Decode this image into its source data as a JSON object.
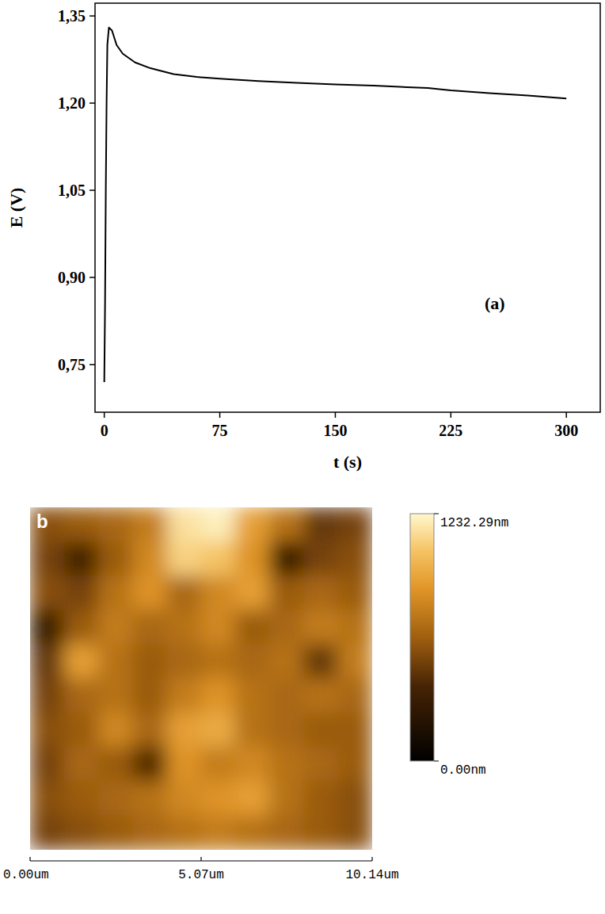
{
  "chart_data": [
    {
      "type": "line",
      "x_label": "t (s)",
      "y_label": "E (V)",
      "annotation": "(a)",
      "x": [
        0,
        0.5,
        1,
        1.5,
        2,
        3,
        5,
        8,
        12,
        20,
        30,
        45,
        60,
        75,
        100,
        125,
        150,
        175,
        200,
        210,
        225,
        250,
        275,
        300
      ],
      "values": [
        0.72,
        0.85,
        1.05,
        1.2,
        1.3,
        1.33,
        1.325,
        1.3,
        1.285,
        1.27,
        1.26,
        1.25,
        1.245,
        1.242,
        1.238,
        1.235,
        1.232,
        1.23,
        1.227,
        1.226,
        1.222,
        1.217,
        1.213,
        1.208
      ],
      "color": "#000000",
      "xlim": [
        -6,
        322
      ],
      "xticks": [
        0,
        75,
        150,
        225,
        300
      ],
      "ylim": [
        0.668,
        1.372
      ],
      "yticks": [
        {
          "value": 0.75,
          "label": "0,75"
        },
        {
          "value": 0.9,
          "label": "0,90"
        },
        {
          "value": 1.05,
          "label": "1,05"
        },
        {
          "value": 1.2,
          "label": "1,20"
        },
        {
          "value": 1.35,
          "label": "1,35"
        }
      ],
      "grid": false
    },
    {
      "type": "heatmap",
      "annotation": "b",
      "cells": [
        [
          550,
          600,
          650,
          750,
          1150,
          1200,
          900,
          700,
          450,
          500
        ],
        [
          500,
          350,
          600,
          800,
          1100,
          1050,
          850,
          300,
          500,
          550
        ],
        [
          550,
          500,
          700,
          850,
          650,
          800,
          900,
          600,
          650,
          600
        ],
        [
          300,
          600,
          750,
          650,
          700,
          800,
          600,
          650,
          750,
          700
        ],
        [
          450,
          900,
          700,
          600,
          650,
          700,
          650,
          700,
          450,
          750
        ],
        [
          500,
          650,
          700,
          600,
          750,
          850,
          700,
          650,
          700,
          650
        ],
        [
          550,
          600,
          800,
          650,
          900,
          950,
          700,
          650,
          600,
          600
        ],
        [
          500,
          650,
          600,
          400,
          850,
          750,
          800,
          700,
          650,
          600
        ],
        [
          550,
          600,
          650,
          700,
          800,
          850,
          900,
          700,
          600,
          550
        ],
        [
          500,
          550,
          600,
          650,
          700,
          750,
          700,
          650,
          600,
          550
        ]
      ],
      "xlim": [
        0,
        10.14
      ],
      "xticks": [
        {
          "value": 0,
          "label": "0.00um"
        },
        {
          "value": 5.07,
          "label": "5.07um"
        },
        {
          "value": 10.14,
          "label": "10.14um"
        }
      ],
      "tick_labels": "x",
      "colorbar": {
        "range": [
          0,
          1232.29
        ],
        "ticks": [
          {
            "value": 0,
            "label": "0.00nm"
          },
          {
            "value": 1232.29,
            "label": "1232.29nm"
          }
        ]
      }
    }
  ]
}
